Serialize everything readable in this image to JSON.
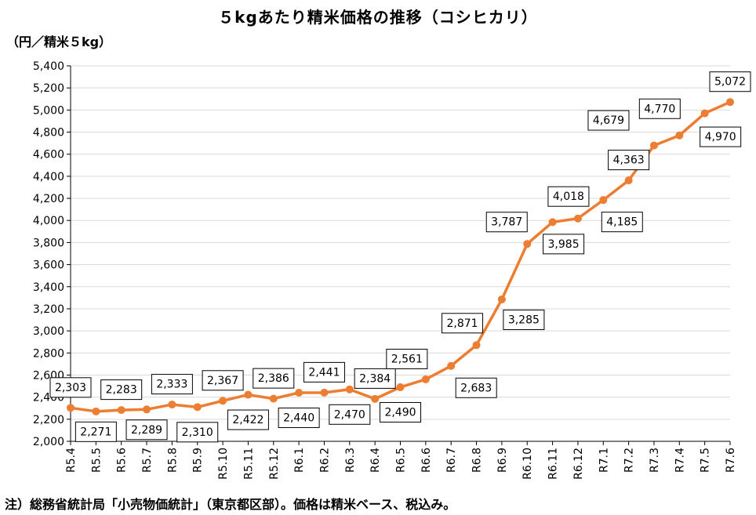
{
  "chart_data": {
    "type": "line",
    "title": "５kgあたり精米価格の推移（コシヒカリ）",
    "ylabel": "（円／精米５kg）",
    "note": "注）総務省統計局「小売物価統計」（東京都区部）。価格は精米ベース、税込み。",
    "ylim": [
      2000,
      5400
    ],
    "yticks": [
      "2,000",
      "2,200",
      "2,400",
      "2,600",
      "2,800",
      "3,000",
      "3,200",
      "3,400",
      "3,600",
      "3,800",
      "4,000",
      "4,200",
      "4,400",
      "4,600",
      "4,800",
      "5,000",
      "5,200",
      "5,400"
    ],
    "categories": [
      "R5.4",
      "R5.5",
      "R5.6",
      "R5.7",
      "R5.8",
      "R5.9",
      "R5.10",
      "R5.11",
      "R5.12",
      "R6.1",
      "R6.2",
      "R6.3",
      "R6.4",
      "R6.5",
      "R6.6",
      "R6.7",
      "R6.8",
      "R6.9",
      "R6.10",
      "R6.11",
      "R6.12",
      "R7.1",
      "R7.2",
      "R7.3",
      "R7.4",
      "R7.5",
      "R7.6"
    ],
    "series": [
      {
        "values": [
          2303,
          2271,
          2283,
          2289,
          2333,
          2310,
          2367,
          2422,
          2386,
          2440,
          2441,
          2470,
          2384,
          2490,
          2561,
          2683,
          2871,
          3285,
          3787,
          3985,
          4018,
          4185,
          4363,
          4679,
          4770,
          4970,
          5072
        ],
        "labels": [
          "2,303",
          "2,271",
          "2,283",
          "2,289",
          "2,333",
          "2,310",
          "2,367",
          "2,422",
          "2,386",
          "2,440",
          "2,441",
          "2,470",
          "2,384",
          "2,490",
          "2,561",
          "2,683",
          "2,871",
          "3,285",
          "3,787",
          "3,985",
          "4,018",
          "4,185",
          "4,363",
          "4,679",
          "4,770",
          "4,970",
          "5,072"
        ]
      }
    ],
    "grid": true,
    "line_color": "#ED7D31",
    "grid_color": "#D9D9D9"
  }
}
